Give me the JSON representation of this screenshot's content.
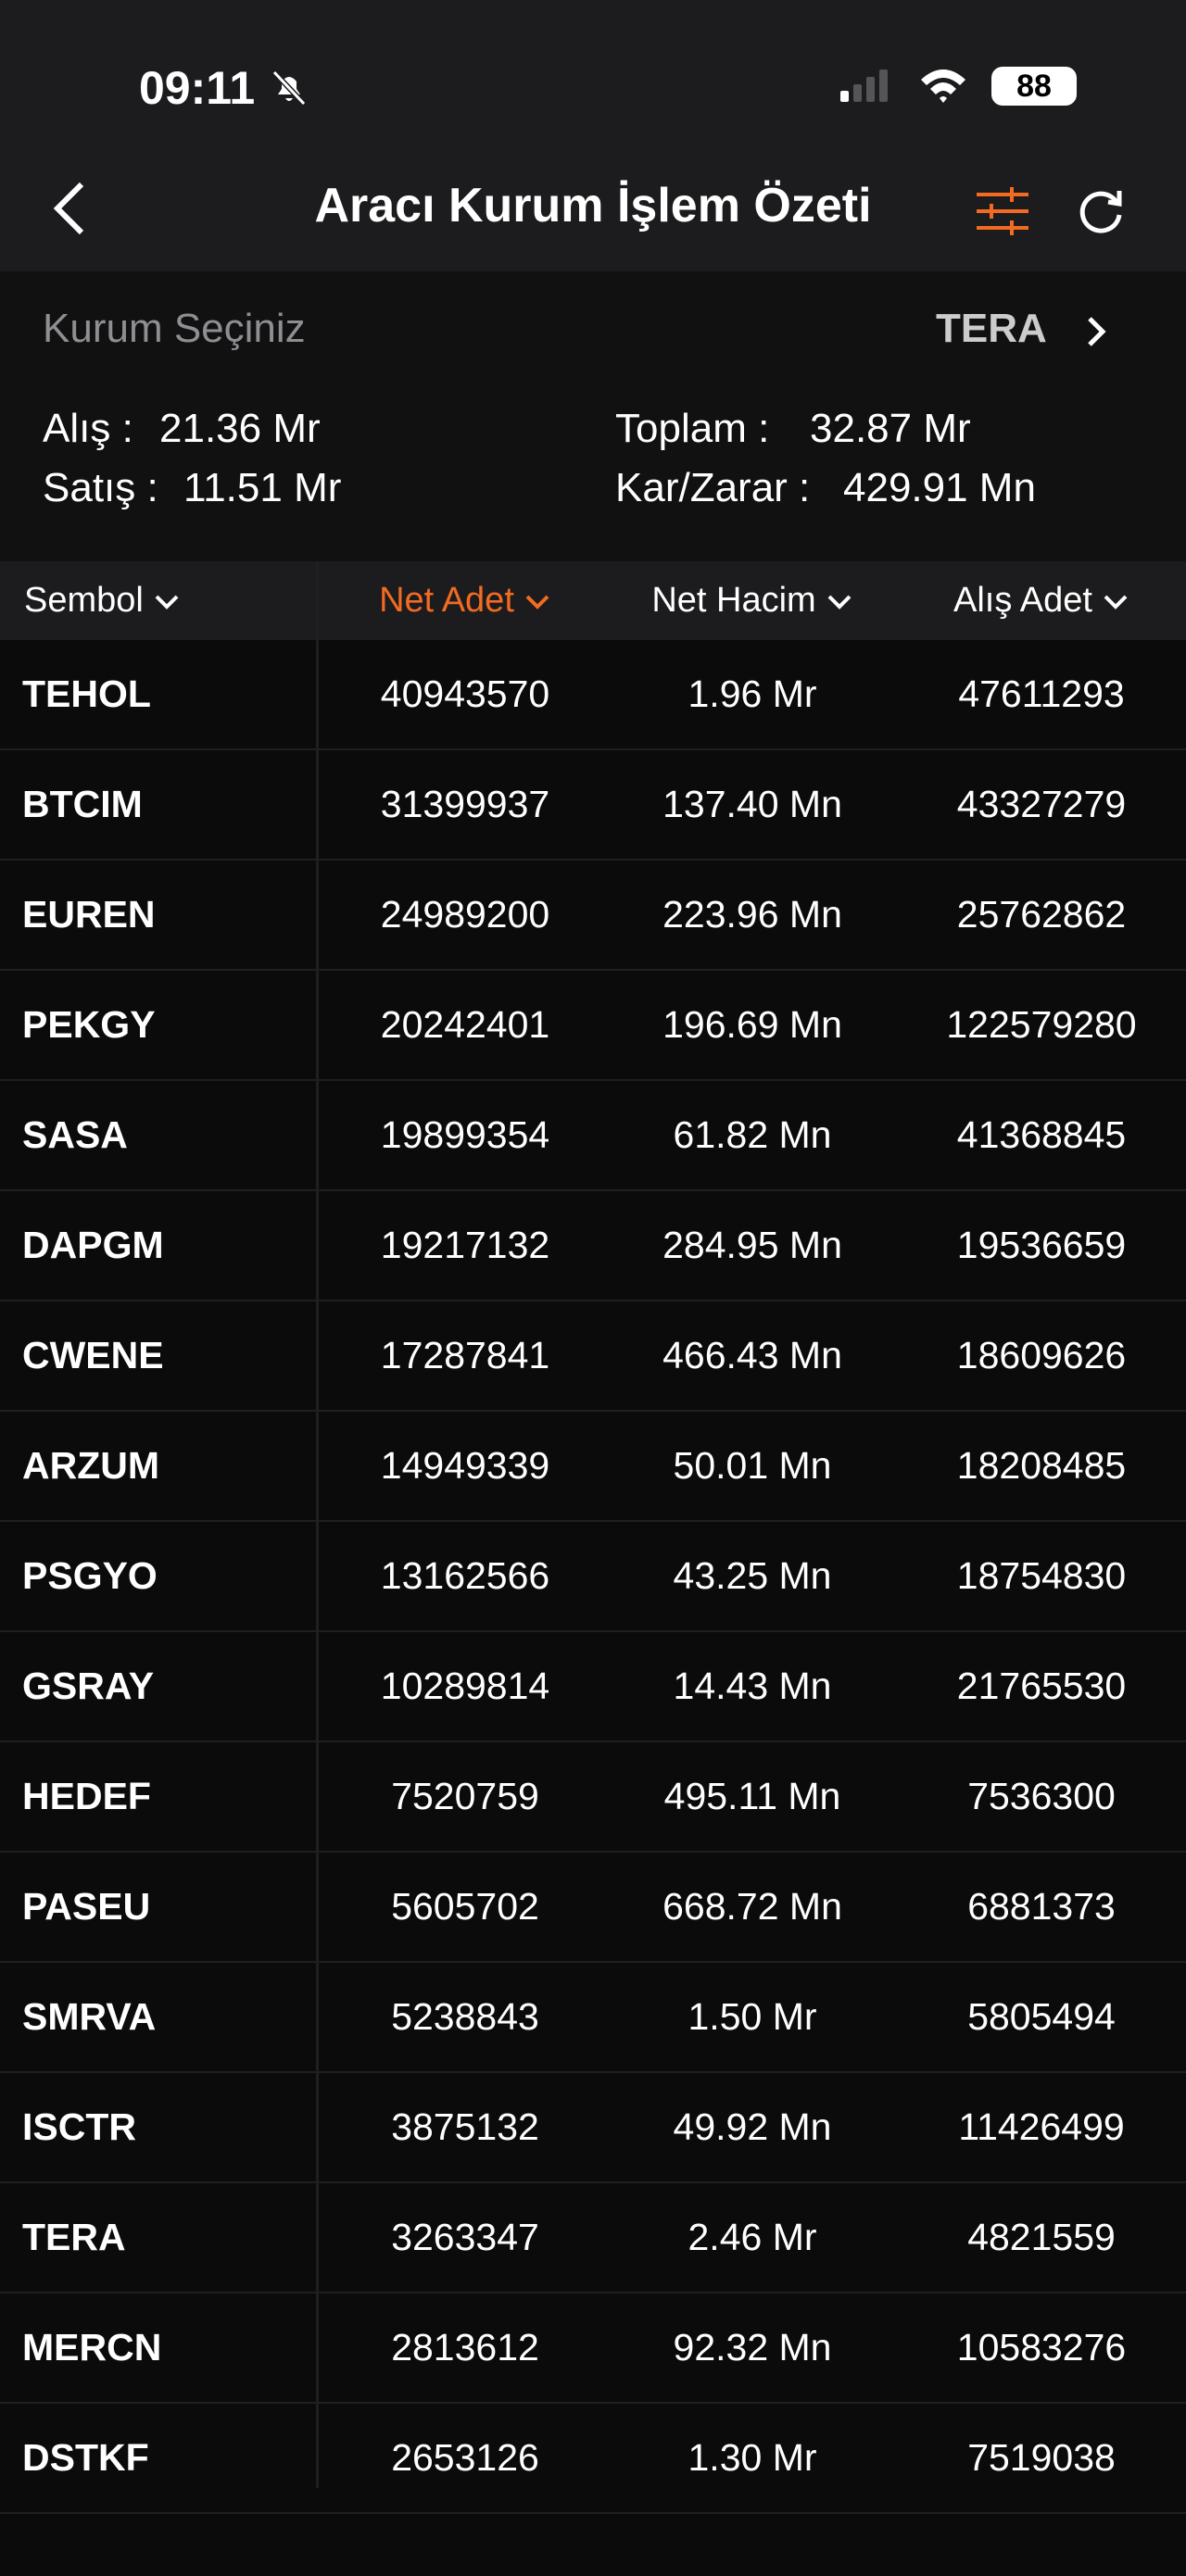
{
  "status_bar": {
    "time": "09:11",
    "battery": "88"
  },
  "nav": {
    "title": "Aracı Kurum İşlem Özeti"
  },
  "broker": {
    "label": "Kurum Seçiniz",
    "value": "TERA"
  },
  "summary": {
    "alis_label": "Alış :",
    "alis": "21.36 Mr",
    "satis_label": "Satış :",
    "satis": "11.51 Mr",
    "toplam_label": "Toplam :",
    "toplam": "32.87 Mr",
    "kar_label": "Kar/Zarar :",
    "kar": "429.91 Mn"
  },
  "table": {
    "columns": [
      "Sembol",
      "Net Adet",
      "Net Hacim",
      "Alış Adet"
    ],
    "rows": [
      [
        "TEHOL",
        "40943570",
        "1.96 Mr",
        "47611293"
      ],
      [
        "BTCIM",
        "31399937",
        "137.40 Mn",
        "43327279"
      ],
      [
        "EUREN",
        "24989200",
        "223.96 Mn",
        "25762862"
      ],
      [
        "PEKGY",
        "20242401",
        "196.69 Mn",
        "122579280"
      ],
      [
        "SASA",
        "19899354",
        "61.82 Mn",
        "41368845"
      ],
      [
        "DAPGM",
        "19217132",
        "284.95 Mn",
        "19536659"
      ],
      [
        "CWENE",
        "17287841",
        "466.43 Mn",
        "18609626"
      ],
      [
        "ARZUM",
        "14949339",
        "50.01 Mn",
        "18208485"
      ],
      [
        "PSGYO",
        "13162566",
        "43.25 Mn",
        "18754830"
      ],
      [
        "GSRAY",
        "10289814",
        "14.43 Mn",
        "21765530"
      ],
      [
        "HEDEF",
        "7520759",
        "495.11 Mn",
        "7536300"
      ],
      [
        "PASEU",
        "5605702",
        "668.72 Mn",
        "6881373"
      ],
      [
        "SMRVA",
        "5238843",
        "1.50 Mr",
        "5805494"
      ],
      [
        "ISCTR",
        "3875132",
        "49.92 Mn",
        "11426499"
      ],
      [
        "TERA",
        "3263347",
        "2.46 Mr",
        "4821559"
      ],
      [
        "MERCN",
        "2813612",
        "92.32 Mn",
        "10583276"
      ],
      [
        "DSTKF",
        "2653126",
        "1.30 Mr",
        "7519038"
      ]
    ]
  }
}
